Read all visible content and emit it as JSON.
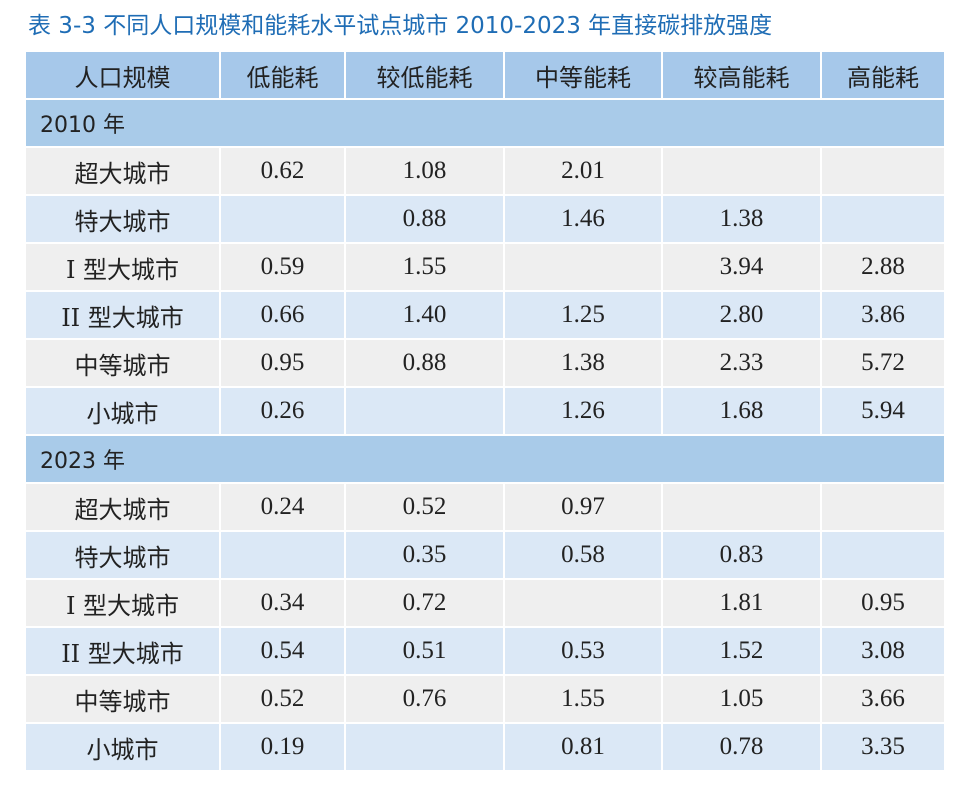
{
  "title": "表 3-3  不同人口规模和能耗水平试点城市 2010-2023 年直接碳排放强度",
  "table": {
    "header": [
      "人口规模",
      "低能耗",
      "较低能耗",
      "中等能耗",
      "较高能耗",
      "高能耗"
    ],
    "sections": [
      {
        "label": "2010 年",
        "rows": [
          [
            "超大城市",
            "0.62",
            "1.08",
            "2.01",
            null,
            null
          ],
          [
            "特大城市",
            null,
            "0.88",
            "1.46",
            "1.38",
            null
          ],
          [
            "I 型大城市",
            "0.59",
            "1.55",
            null,
            "3.94",
            "2.88"
          ],
          [
            "II 型大城市",
            "0.66",
            "1.40",
            "1.25",
            "2.80",
            "3.86"
          ],
          [
            "中等城市",
            "0.95",
            "0.88",
            "1.38",
            "2.33",
            "5.72"
          ],
          [
            "小城市",
            "0.26",
            null,
            "1.26",
            "1.68",
            "5.94"
          ]
        ]
      },
      {
        "label": "2023 年",
        "rows": [
          [
            "超大城市",
            "0.24",
            "0.52",
            "0.97",
            null,
            null
          ],
          [
            "特大城市",
            null,
            "0.35",
            "0.58",
            "0.83",
            null
          ],
          [
            "I 型大城市",
            "0.34",
            "0.72",
            null,
            "1.81",
            "0.95"
          ],
          [
            "II 型大城市",
            "0.54",
            "0.51",
            "0.53",
            "1.52",
            "3.08"
          ],
          [
            "中等城市",
            "0.52",
            "0.76",
            "1.55",
            "1.05",
            "3.66"
          ],
          [
            "小城市",
            "0.19",
            null,
            "0.81",
            "0.78",
            "3.35"
          ]
        ]
      }
    ]
  }
}
